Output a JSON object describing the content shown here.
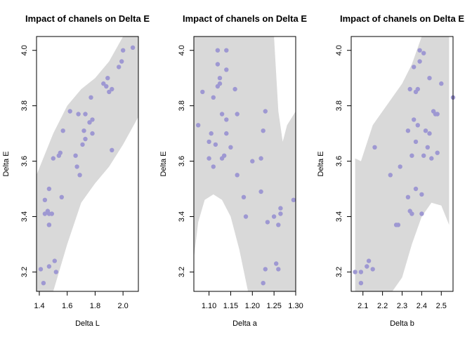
{
  "chart_data": [
    {
      "type": "scatter",
      "title": "Impact of chanels on Delta E",
      "xlabel": "Delta L",
      "ylabel": "Delta E",
      "xlim": [
        1.38,
        2.11
      ],
      "ylim": [
        3.13,
        4.05
      ],
      "xticks": [
        "1.4",
        "1.6",
        "1.8",
        "2.0"
      ],
      "xtick_values": [
        1.4,
        1.6,
        1.8,
        2.0
      ],
      "yticks": [
        "3.2",
        "3.4",
        "3.6",
        "3.8",
        "4.0"
      ],
      "ytick_values": [
        3.2,
        3.4,
        3.6,
        3.8,
        4.0
      ],
      "band": {
        "x": [
          1.38,
          1.5,
          1.6,
          1.7,
          1.8,
          1.9,
          2.0,
          2.11
        ],
        "upper": [
          3.55,
          3.7,
          3.8,
          3.86,
          3.9,
          3.96,
          4.05,
          4.05
        ],
        "lower": [
          3.13,
          3.13,
          3.3,
          3.45,
          3.52,
          3.58,
          3.66,
          3.76
        ]
      },
      "points": [
        [
          1.41,
          3.21
        ],
        [
          1.43,
          3.16
        ],
        [
          1.44,
          3.41
        ],
        [
          1.44,
          3.46
        ],
        [
          1.46,
          3.42
        ],
        [
          1.47,
          3.5
        ],
        [
          1.47,
          3.41
        ],
        [
          1.47,
          3.37
        ],
        [
          1.47,
          3.37
        ],
        [
          1.47,
          3.22
        ],
        [
          1.49,
          3.41
        ],
        [
          1.51,
          3.24
        ],
        [
          1.52,
          3.2
        ],
        [
          1.5,
          3.61
        ],
        [
          1.54,
          3.62
        ],
        [
          1.55,
          3.63
        ],
        [
          1.56,
          3.47
        ],
        [
          1.57,
          3.71
        ],
        [
          1.62,
          3.78
        ],
        [
          1.66,
          3.62
        ],
        [
          1.67,
          3.58
        ],
        [
          1.68,
          3.77
        ],
        [
          1.69,
          3.55
        ],
        [
          1.71,
          3.66
        ],
        [
          1.72,
          3.71
        ],
        [
          1.73,
          3.68
        ],
        [
          1.73,
          3.77
        ],
        [
          1.76,
          3.74
        ],
        [
          1.77,
          3.83
        ],
        [
          1.78,
          3.7
        ],
        [
          1.78,
          3.75
        ],
        [
          1.86,
          3.88
        ],
        [
          1.88,
          3.87
        ],
        [
          1.89,
          3.9
        ],
        [
          1.9,
          3.85
        ],
        [
          1.92,
          3.86
        ],
        [
          1.92,
          3.64
        ],
        [
          1.97,
          3.94
        ],
        [
          1.99,
          3.96
        ],
        [
          2.0,
          4.0
        ],
        [
          2.07,
          4.01
        ]
      ]
    },
    {
      "type": "scatter",
      "title": "Impact of chanels on Delta E",
      "xlabel": "Delta a",
      "ylabel": "Delta E",
      "xlim": [
        1.065,
        1.3
      ],
      "ylim": [
        3.13,
        4.05
      ],
      "xticks": [
        "1.10",
        "1.15",
        "1.20",
        "1.25",
        "1.30"
      ],
      "xtick_values": [
        1.1,
        1.15,
        1.2,
        1.25,
        1.3
      ],
      "yticks": [
        "3.2",
        "3.4",
        "3.6",
        "3.8",
        "4.0"
      ],
      "ytick_values": [
        3.2,
        3.4,
        3.6,
        3.8,
        4.0
      ],
      "band": {
        "x": [
          1.065,
          1.075,
          1.09,
          1.11,
          1.13,
          1.15,
          1.17,
          1.19,
          1.21,
          1.23,
          1.25,
          1.26,
          1.27,
          1.28,
          1.3
        ],
        "upper": [
          4.05,
          4.05,
          4.05,
          4.05,
          4.05,
          4.05,
          4.05,
          4.05,
          4.05,
          4.05,
          4.05,
          3.78,
          3.67,
          3.73,
          3.78
        ],
        "lower": [
          3.25,
          3.38,
          3.46,
          3.48,
          3.46,
          3.4,
          3.28,
          3.13,
          3.13,
          3.13,
          3.13,
          3.13,
          3.13,
          3.13,
          3.13
        ]
      },
      "points": [
        [
          1.075,
          3.73
        ],
        [
          1.085,
          3.85
        ],
        [
          1.1,
          3.61
        ],
        [
          1.1,
          3.67
        ],
        [
          1.105,
          3.7
        ],
        [
          1.11,
          3.58
        ],
        [
          1.11,
          3.83
        ],
        [
          1.115,
          3.66
        ],
        [
          1.12,
          4.0
        ],
        [
          1.12,
          3.87
        ],
        [
          1.12,
          3.95
        ],
        [
          1.125,
          3.9
        ],
        [
          1.125,
          3.88
        ],
        [
          1.13,
          3.77
        ],
        [
          1.13,
          3.61
        ],
        [
          1.135,
          3.62
        ],
        [
          1.14,
          3.7
        ],
        [
          1.14,
          3.75
        ],
        [
          1.14,
          3.93
        ],
        [
          1.14,
          4.0
        ],
        [
          1.15,
          3.65
        ],
        [
          1.16,
          3.86
        ],
        [
          1.165,
          3.55
        ],
        [
          1.165,
          3.77
        ],
        [
          1.18,
          3.47
        ],
        [
          1.185,
          3.4
        ],
        [
          1.2,
          3.6
        ],
        [
          1.22,
          3.49
        ],
        [
          1.22,
          3.61
        ],
        [
          1.225,
          3.16
        ],
        [
          1.225,
          3.71
        ],
        [
          1.23,
          3.21
        ],
        [
          1.23,
          3.78
        ],
        [
          1.235,
          3.38
        ],
        [
          1.25,
          3.4
        ],
        [
          1.255,
          3.23
        ],
        [
          1.26,
          3.37
        ],
        [
          1.26,
          3.21
        ],
        [
          1.265,
          3.43
        ],
        [
          1.265,
          3.41
        ],
        [
          1.295,
          3.46
        ]
      ]
    },
    {
      "type": "scatter",
      "title": "Impact of chanels on Delta E",
      "xlabel": "Delta b",
      "ylabel": "Delta E",
      "xlim": [
        2.04,
        2.56
      ],
      "ylim": [
        3.13,
        4.05
      ],
      "xticks": [
        "2.1",
        "2.2",
        "2.3",
        "2.4",
        "2.5"
      ],
      "xtick_values": [
        2.1,
        2.2,
        2.3,
        2.4,
        2.5
      ],
      "yticks": [
        "3.2",
        "3.4",
        "3.6",
        "3.8",
        "4.0"
      ],
      "ytick_values": [
        3.2,
        3.4,
        3.6,
        3.8,
        4.0
      ],
      "band": {
        "x": [
          2.06,
          2.09,
          2.15,
          2.2,
          2.25,
          2.3,
          2.35,
          2.4,
          2.45,
          2.5,
          2.54
        ],
        "upper": [
          3.61,
          3.6,
          3.73,
          3.78,
          3.83,
          3.88,
          3.95,
          4.05,
          4.05,
          4.05,
          4.05
        ],
        "lower": [
          3.13,
          3.13,
          3.13,
          3.13,
          3.13,
          3.18,
          3.3,
          3.4,
          3.45,
          3.44,
          3.37
        ]
      },
      "points": [
        [
          2.06,
          3.2
        ],
        [
          2.09,
          3.2
        ],
        [
          2.09,
          3.16
        ],
        [
          2.12,
          3.22
        ],
        [
          2.13,
          3.24
        ],
        [
          2.15,
          3.21
        ],
        [
          2.16,
          3.65
        ],
        [
          2.24,
          3.55
        ],
        [
          2.27,
          3.37
        ],
        [
          2.28,
          3.37
        ],
        [
          2.29,
          3.58
        ],
        [
          2.33,
          3.47
        ],
        [
          2.33,
          3.71
        ],
        [
          2.34,
          3.42
        ],
        [
          2.34,
          3.86
        ],
        [
          2.35,
          3.41
        ],
        [
          2.35,
          3.62
        ],
        [
          2.36,
          3.75
        ],
        [
          2.36,
          3.94
        ],
        [
          2.37,
          3.5
        ],
        [
          2.37,
          3.67
        ],
        [
          2.37,
          3.85
        ],
        [
          2.38,
          3.73
        ],
        [
          2.38,
          3.86
        ],
        [
          2.39,
          3.96
        ],
        [
          2.39,
          4.0
        ],
        [
          2.4,
          3.48
        ],
        [
          2.4,
          3.41
        ],
        [
          2.41,
          3.99
        ],
        [
          2.41,
          3.62
        ],
        [
          2.42,
          3.71
        ],
        [
          2.43,
          3.65
        ],
        [
          2.44,
          3.9
        ],
        [
          2.44,
          3.7
        ],
        [
          2.45,
          3.61
        ],
        [
          2.46,
          3.78
        ],
        [
          2.47,
          3.77
        ],
        [
          2.48,
          3.63
        ],
        [
          2.5,
          3.88
        ],
        [
          2.48,
          3.77
        ],
        [
          2.56,
          3.83
        ]
      ]
    }
  ],
  "colors": {
    "band": "#d9d9d9",
    "point": "#9e98d2",
    "axis": "#000000"
  }
}
